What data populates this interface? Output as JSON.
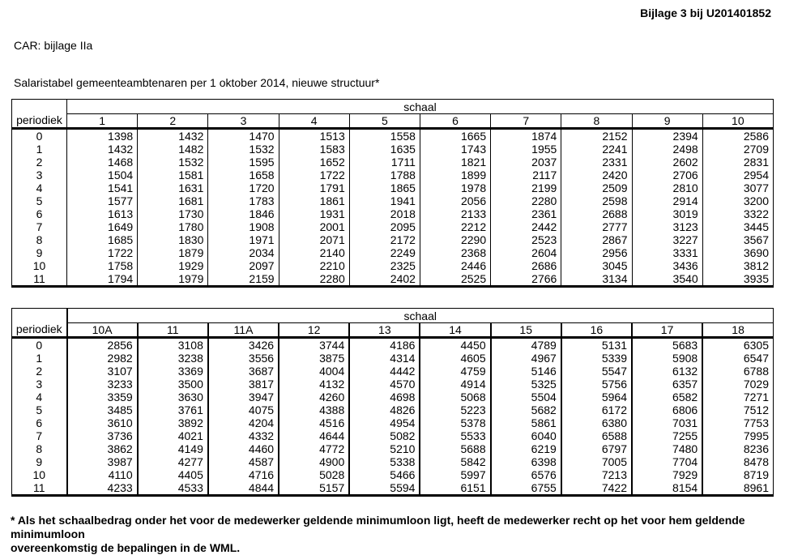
{
  "page": {
    "ref": "Bijlage 3 bij U201401852",
    "car": "CAR: bijlage IIa",
    "title": "Salaristabel gemeenteambtenaren per 1 oktober 2014, nieuwe structuur*",
    "footnote_lines": [
      "* Als het schaalbedrag onder het voor de medewerker geldende minimumloon ligt, heeft de medewerker recht op het voor hem geldende minimumloon",
      "overeenkomstig de bepalingen in de WML."
    ]
  },
  "tables": [
    {
      "group_header": "schaal",
      "row_header": "periodiek",
      "columns": [
        "1",
        "2",
        "3",
        "4",
        "5",
        "6",
        "7",
        "8",
        "9",
        "10"
      ],
      "rows": [
        {
          "periodiek": "0",
          "values": [
            1398,
            1432,
            1470,
            1513,
            1558,
            1665,
            1874,
            2152,
            2394,
            2586
          ]
        },
        {
          "periodiek": "1",
          "values": [
            1432,
            1482,
            1532,
            1583,
            1635,
            1743,
            1955,
            2241,
            2498,
            2709
          ]
        },
        {
          "periodiek": "2",
          "values": [
            1468,
            1532,
            1595,
            1652,
            1711,
            1821,
            2037,
            2331,
            2602,
            2831
          ]
        },
        {
          "periodiek": "3",
          "values": [
            1504,
            1581,
            1658,
            1722,
            1788,
            1899,
            2117,
            2420,
            2706,
            2954
          ]
        },
        {
          "periodiek": "4",
          "values": [
            1541,
            1631,
            1720,
            1791,
            1865,
            1978,
            2199,
            2509,
            2810,
            3077
          ]
        },
        {
          "periodiek": "5",
          "values": [
            1577,
            1681,
            1783,
            1861,
            1941,
            2056,
            2280,
            2598,
            2914,
            3200
          ]
        },
        {
          "periodiek": "6",
          "values": [
            1613,
            1730,
            1846,
            1931,
            2018,
            2133,
            2361,
            2688,
            3019,
            3322
          ]
        },
        {
          "periodiek": "7",
          "values": [
            1649,
            1780,
            1908,
            2001,
            2095,
            2212,
            2442,
            2777,
            3123,
            3445
          ]
        },
        {
          "periodiek": "8",
          "values": [
            1685,
            1830,
            1971,
            2071,
            2172,
            2290,
            2523,
            2867,
            3227,
            3567
          ]
        },
        {
          "periodiek": "9",
          "values": [
            1722,
            1879,
            2034,
            2140,
            2249,
            2368,
            2604,
            2956,
            3331,
            3690
          ]
        },
        {
          "periodiek": "10",
          "values": [
            1758,
            1929,
            2097,
            2210,
            2325,
            2446,
            2686,
            3045,
            3436,
            3812
          ]
        },
        {
          "periodiek": "11",
          "values": [
            1794,
            1979,
            2159,
            2280,
            2402,
            2525,
            2766,
            3134,
            3540,
            3935
          ]
        }
      ]
    },
    {
      "group_header": "schaal",
      "row_header": "periodiek",
      "columns": [
        "10A",
        "11",
        "11A",
        "12",
        "13",
        "14",
        "15",
        "16",
        "17",
        "18"
      ],
      "rows": [
        {
          "periodiek": "0",
          "values": [
            2856,
            3108,
            3426,
            3744,
            4186,
            4450,
            4789,
            5131,
            5683,
            6305
          ]
        },
        {
          "periodiek": "1",
          "values": [
            2982,
            3238,
            3556,
            3875,
            4314,
            4605,
            4967,
            5339,
            5908,
            6547
          ]
        },
        {
          "periodiek": "2",
          "values": [
            3107,
            3369,
            3687,
            4004,
            4442,
            4759,
            5146,
            5547,
            6132,
            6788
          ]
        },
        {
          "periodiek": "3",
          "values": [
            3233,
            3500,
            3817,
            4132,
            4570,
            4914,
            5325,
            5756,
            6357,
            7029
          ]
        },
        {
          "periodiek": "4",
          "values": [
            3359,
            3630,
            3947,
            4260,
            4698,
            5068,
            5504,
            5964,
            6582,
            7271
          ]
        },
        {
          "periodiek": "5",
          "values": [
            3485,
            3761,
            4075,
            4388,
            4826,
            5223,
            5682,
            6172,
            6806,
            7512
          ]
        },
        {
          "periodiek": "6",
          "values": [
            3610,
            3892,
            4204,
            4516,
            4954,
            5378,
            5861,
            6380,
            7031,
            7753
          ]
        },
        {
          "periodiek": "7",
          "values": [
            3736,
            4021,
            4332,
            4644,
            5082,
            5533,
            6040,
            6588,
            7255,
            7995
          ]
        },
        {
          "periodiek": "8",
          "values": [
            3862,
            4149,
            4460,
            4772,
            5210,
            5688,
            6219,
            6797,
            7480,
            8236
          ]
        },
        {
          "periodiek": "9",
          "values": [
            3987,
            4277,
            4587,
            4900,
            5338,
            5842,
            6398,
            7005,
            7704,
            8478
          ]
        },
        {
          "periodiek": "10",
          "values": [
            4110,
            4405,
            4716,
            5028,
            5466,
            5997,
            6576,
            7213,
            7929,
            8719
          ]
        },
        {
          "periodiek": "11",
          "values": [
            4233,
            4533,
            4844,
            5157,
            5594,
            6151,
            6755,
            7422,
            8154,
            8961
          ]
        }
      ]
    }
  ]
}
